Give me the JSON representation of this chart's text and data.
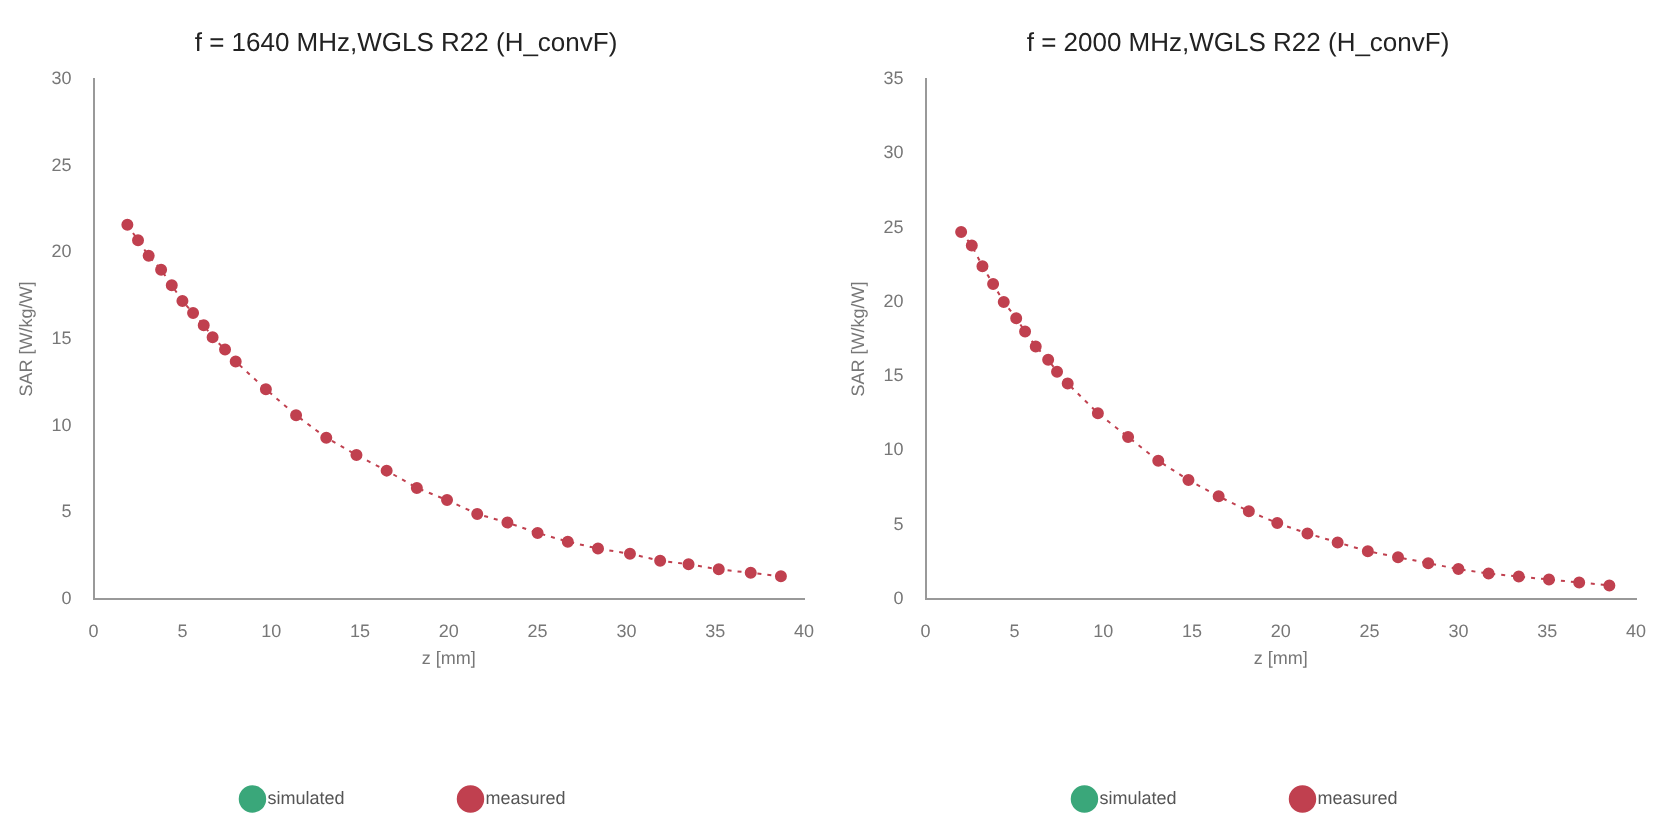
{
  "chart_data": [
    {
      "type": "line",
      "title": "f = 1640 MHz,WGLS R22 (H_convF)",
      "xlabel": "z [mm]",
      "ylabel": "SAR [W/kg/W]",
      "xlim": [
        0,
        40
      ],
      "xticks": [
        0,
        5,
        10,
        15,
        20,
        25,
        30,
        35,
        40
      ],
      "ylim": [
        0,
        30
      ],
      "yticks": [
        0,
        5,
        10,
        15,
        20,
        25,
        30
      ],
      "grid": false,
      "legend": "bottom",
      "marker": "circle",
      "line_style": "dotted",
      "x": [
        1.9,
        2.5,
        3.1,
        3.8,
        4.4,
        5.0,
        5.6,
        6.2,
        6.7,
        7.4,
        8.0,
        9.7,
        11.4,
        13.1,
        14.8,
        16.5,
        18.2,
        19.9,
        21.6,
        23.3,
        25.0,
        26.7,
        28.4,
        30.2,
        31.9,
        33.5,
        35.2,
        37.0,
        38.7
      ],
      "series": [
        {
          "name": "simulated",
          "color": "#3aa77a",
          "values": [
            null,
            null,
            null,
            null,
            null,
            null,
            null,
            null,
            null,
            null,
            null,
            null,
            null,
            null,
            null,
            null,
            null,
            null,
            null,
            null,
            null,
            null,
            null,
            null,
            null,
            null,
            null,
            null,
            null
          ]
        },
        {
          "name": "measured",
          "color": "#c0404f",
          "values": [
            21.6,
            20.7,
            19.8,
            19.0,
            18.1,
            17.2,
            16.5,
            15.8,
            15.1,
            14.4,
            13.7,
            12.1,
            10.6,
            9.3,
            8.3,
            7.4,
            6.4,
            5.7,
            4.9,
            4.4,
            3.8,
            3.3,
            2.9,
            2.6,
            2.2,
            2.0,
            1.7,
            1.5,
            1.3
          ]
        }
      ]
    },
    {
      "type": "line",
      "title": "f = 2000 MHz,WGLS R22 (H_convF)",
      "xlabel": "z [mm]",
      "ylabel": "SAR [W/kg/W]",
      "xlim": [
        0,
        40
      ],
      "xticks": [
        0,
        5,
        10,
        15,
        20,
        25,
        30,
        35,
        40
      ],
      "ylim": [
        0,
        35
      ],
      "yticks": [
        0,
        5,
        10,
        15,
        20,
        25,
        30,
        35
      ],
      "grid": false,
      "legend": "bottom",
      "marker": "circle",
      "line_style": "dotted",
      "x": [
        2.0,
        2.6,
        3.2,
        3.8,
        4.4,
        5.1,
        5.6,
        6.2,
        6.9,
        7.4,
        8.0,
        9.7,
        11.4,
        13.1,
        14.8,
        16.5,
        18.2,
        19.8,
        21.5,
        23.2,
        24.9,
        26.6,
        28.3,
        30.0,
        31.7,
        33.4,
        35.1,
        36.8,
        38.5
      ],
      "series": [
        {
          "name": "simulated",
          "color": "#3aa77a",
          "values": [
            null,
            null,
            null,
            null,
            null,
            null,
            null,
            null,
            null,
            null,
            null,
            null,
            null,
            null,
            null,
            null,
            null,
            null,
            null,
            null,
            null,
            null,
            null,
            null,
            null,
            null,
            null,
            null,
            null
          ]
        },
        {
          "name": "measured",
          "color": "#c0404f",
          "values": [
            24.7,
            23.8,
            22.4,
            21.2,
            20.0,
            18.9,
            18.0,
            17.0,
            16.1,
            15.3,
            14.5,
            12.5,
            10.9,
            9.3,
            8.0,
            6.9,
            5.9,
            5.1,
            4.4,
            3.8,
            3.2,
            2.8,
            2.4,
            2.0,
            1.7,
            1.5,
            1.3,
            1.1,
            0.9
          ]
        }
      ]
    }
  ]
}
